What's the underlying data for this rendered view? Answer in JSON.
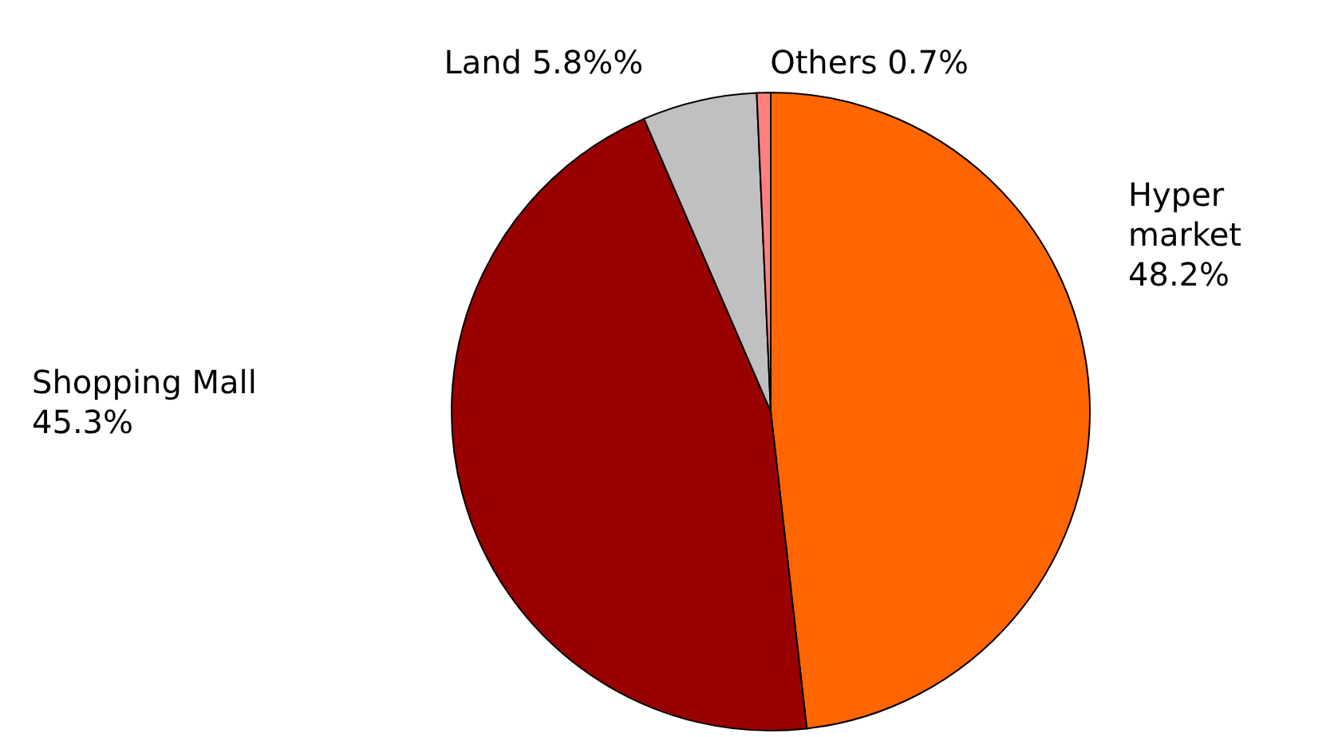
{
  "chart_data": {
    "type": "pie",
    "categories": [
      "Hyper market",
      "Shopping Mall",
      "Land",
      "Others"
    ],
    "values": [
      48.2,
      45.3,
      5.8,
      0.7
    ],
    "value_labels": [
      "48.2%",
      "45.3%",
      "5.8%%",
      "0.7%"
    ],
    "colors": [
      "#ff6600",
      "#990000",
      "#c0c0c0",
      "#ff8080"
    ]
  }
}
